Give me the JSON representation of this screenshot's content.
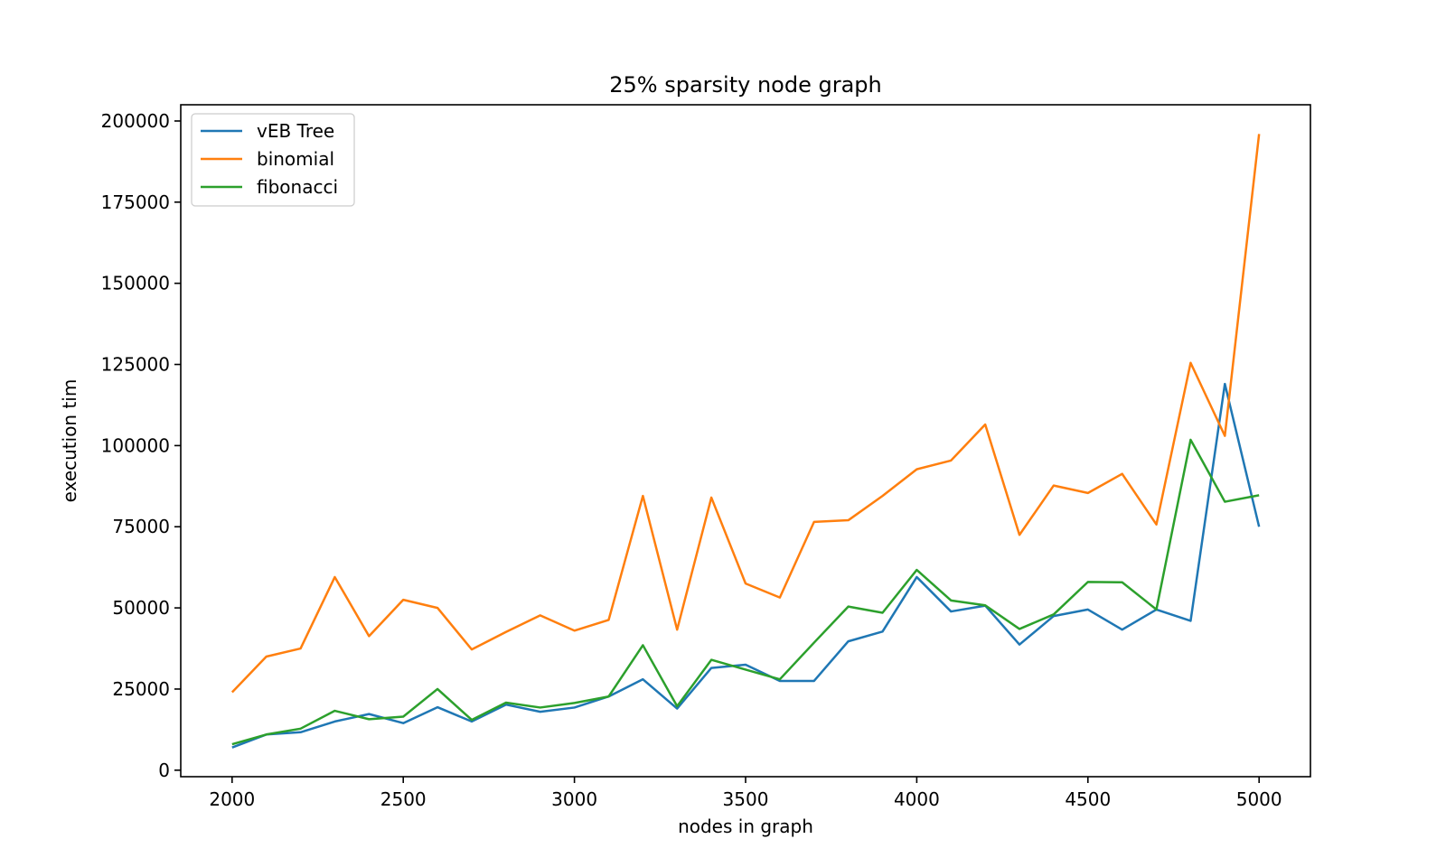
{
  "chart_data": {
    "type": "line",
    "title": "25% sparsity node graph",
    "xlabel": "nodes in graph",
    "ylabel": "execution tim",
    "xlim": [
      1850,
      5150
    ],
    "ylim": [
      -2000,
      205000
    ],
    "xticks": [
      2000,
      2500,
      3000,
      3500,
      4000,
      4500,
      5000
    ],
    "yticks": [
      0,
      25000,
      50000,
      75000,
      100000,
      125000,
      150000,
      175000,
      200000
    ],
    "grid": false,
    "legend_position": "top-left",
    "x": [
      2000,
      2100,
      2200,
      2300,
      2400,
      2500,
      2600,
      2700,
      2800,
      2900,
      3000,
      3100,
      3200,
      3300,
      3400,
      3500,
      3600,
      3700,
      3800,
      3900,
      4000,
      4100,
      4200,
      4300,
      4400,
      4500,
      4600,
      4700,
      4800,
      4900,
      5000
    ],
    "series": [
      {
        "name": "vEB Tree",
        "color": "#1f77b4",
        "values": [
          7000,
          11000,
          11700,
          15000,
          17300,
          14500,
          19400,
          15000,
          20200,
          18000,
          19300,
          22700,
          28000,
          19000,
          31500,
          32500,
          27500,
          27500,
          39700,
          42700,
          59500,
          48900,
          50700,
          38700,
          47500,
          49500,
          43300,
          49500,
          46000,
          119000,
          75000
        ]
      },
      {
        "name": "binomial",
        "color": "#ff7f0e",
        "values": [
          24000,
          35000,
          37500,
          59500,
          41300,
          52500,
          50000,
          37200,
          42600,
          47700,
          43000,
          46300,
          84500,
          43300,
          84000,
          57500,
          53200,
          76500,
          77000,
          84500,
          92700,
          95400,
          106500,
          72500,
          87700,
          85400,
          91300,
          75700,
          125500,
          103000,
          196000
        ]
      },
      {
        "name": "fibonacci",
        "color": "#2ca02c",
        "values": [
          8000,
          11000,
          12800,
          18300,
          15700,
          16500,
          25000,
          15500,
          20800,
          19300,
          20700,
          22700,
          38500,
          19700,
          34000,
          31000,
          28000,
          39300,
          50400,
          48500,
          61700,
          52300,
          50800,
          43500,
          48000,
          58000,
          57900,
          49500,
          101800,
          82700,
          84700
        ]
      }
    ]
  }
}
